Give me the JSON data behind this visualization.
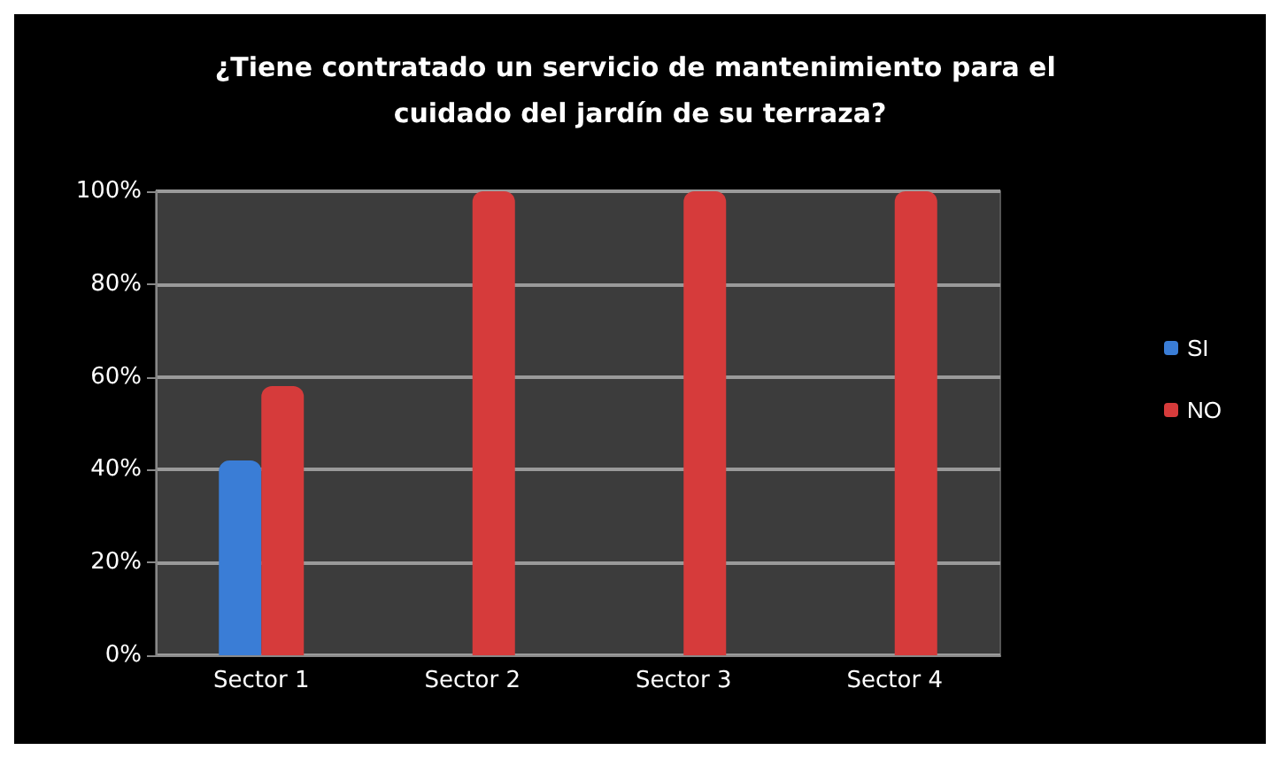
{
  "chart_data": {
    "type": "bar",
    "title": "¿Tiene contratado un servicio de mantenimiento para el cuidado del jardín de su terraza?",
    "categories": [
      "Sector 1",
      "Sector 2",
      "Sector 3",
      "Sector 4"
    ],
    "series": [
      {
        "name": "SI",
        "color": "#3a7dd6",
        "values": [
          42,
          0,
          0,
          0
        ]
      },
      {
        "name": "NO",
        "color": "#d63b3b",
        "values": [
          58,
          100,
          100,
          100
        ]
      }
    ],
    "ylim": [
      0,
      100
    ],
    "yticks": [
      {
        "value": 0,
        "label": "0%"
      },
      {
        "value": 20,
        "label": "20%"
      },
      {
        "value": 40,
        "label": "40%"
      },
      {
        "value": 60,
        "label": "60%"
      },
      {
        "value": 80,
        "label": "80%"
      },
      {
        "value": 100,
        "label": "100%"
      }
    ],
    "grid": "y",
    "legend": "right"
  }
}
